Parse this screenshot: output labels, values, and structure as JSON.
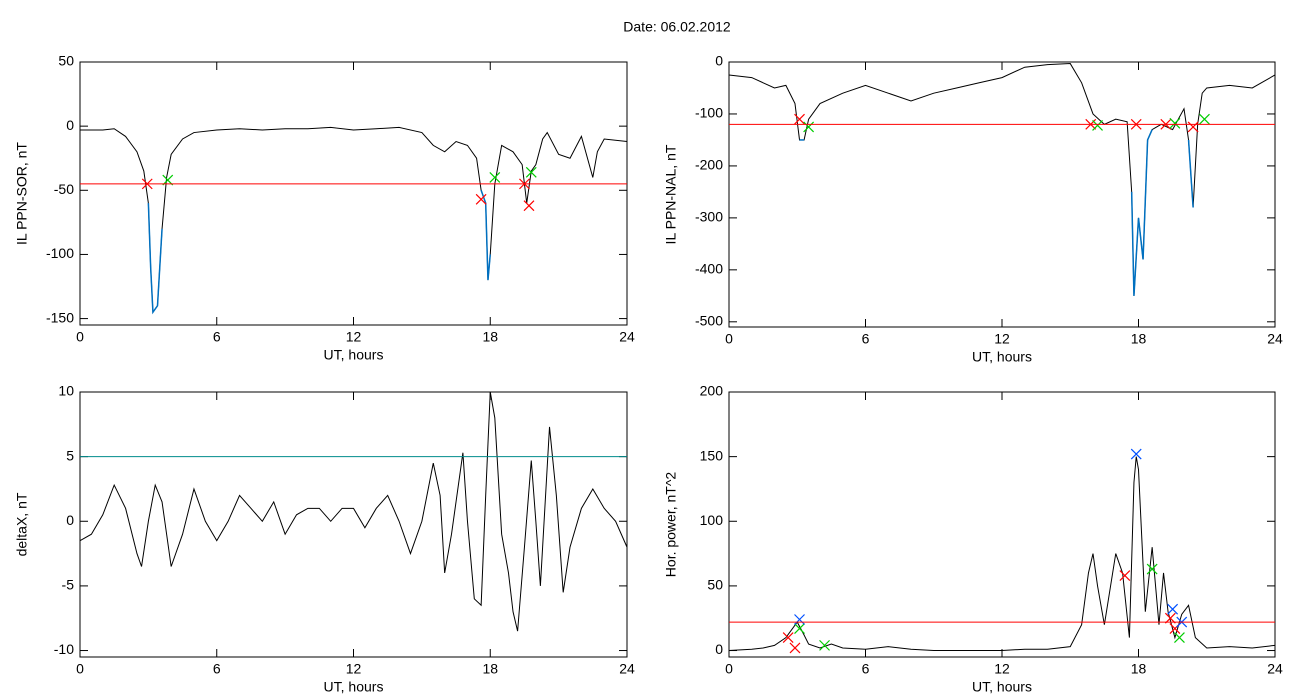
{
  "title": "Date:  06.02.2012",
  "chart_data": [
    {
      "type": "line",
      "ylabel": "IL PPN-SOR, nT",
      "xlabel": "UT, hours",
      "xlim": [
        0,
        24
      ],
      "xticks": [
        0,
        6,
        12,
        18,
        24
      ],
      "ylim": [
        -155,
        50
      ],
      "yticks": [
        -150,
        -100,
        -50,
        0,
        50
      ],
      "threshold": {
        "value": -45,
        "color": "#ff0000"
      },
      "series": [
        {
          "color": "#000000",
          "below_color": "#0070c0",
          "x": [
            0,
            1,
            1.5,
            2,
            2.5,
            2.8,
            3.0,
            3.1,
            3.2,
            3.4,
            3.6,
            3.8,
            4.0,
            4.5,
            5,
            6,
            7,
            8,
            9,
            10,
            11,
            12,
            13,
            14,
            15,
            15.5,
            16,
            16.5,
            17,
            17.4,
            17.6,
            17.8,
            17.9,
            18.0,
            18.2,
            18.5,
            19,
            19.4,
            19.6,
            19.8,
            20,
            20.3,
            20.5,
            21,
            21.5,
            22,
            22.5,
            22.7,
            23,
            24
          ],
          "values": [
            -3,
            -3,
            -2,
            -8,
            -20,
            -35,
            -60,
            -110,
            -145,
            -140,
            -80,
            -40,
            -22,
            -10,
            -5,
            -3,
            -2,
            -3,
            -2,
            -2,
            -1,
            -3,
            -2,
            -1,
            -5,
            -15,
            -20,
            -12,
            -15,
            -25,
            -50,
            -60,
            -120,
            -100,
            -45,
            -15,
            -20,
            -30,
            -60,
            -35,
            -30,
            -10,
            -5,
            -22,
            -25,
            -8,
            -40,
            -20,
            -10,
            -12
          ]
        },
        {
          "marker": "x",
          "color": "#ff0000",
          "x": [
            2.95,
            17.6,
            19.5,
            19.7
          ],
          "values": [
            -45,
            -57,
            -45,
            -62
          ]
        },
        {
          "marker": "x",
          "color": "#00cc00",
          "x": [
            3.85,
            18.2,
            19.8
          ],
          "values": [
            -42,
            -40,
            -36
          ]
        }
      ]
    },
    {
      "type": "line",
      "ylabel": "IL PPN-NAL, nT",
      "xlabel": "UT, hours",
      "xlim": [
        0,
        24
      ],
      "xticks": [
        0,
        6,
        12,
        18,
        24
      ],
      "ylim": [
        -510,
        0
      ],
      "yticks": [
        -500,
        -400,
        -300,
        -200,
        -100,
        0
      ],
      "threshold": {
        "value": -120,
        "color": "#ff0000"
      },
      "series": [
        {
          "color": "#000000",
          "below_color": "#0070c0",
          "x": [
            0,
            1,
            1.5,
            2,
            2.5,
            2.9,
            3.1,
            3.3,
            3.5,
            4,
            5,
            6,
            7,
            8,
            9,
            10,
            11,
            12,
            13,
            14,
            15,
            15.5,
            16,
            16.5,
            17,
            17.5,
            17.7,
            17.8,
            18.0,
            18.2,
            18.4,
            18.6,
            19,
            19.5,
            20,
            20.2,
            20.4,
            20.6,
            20.8,
            21,
            22,
            23,
            24
          ],
          "values": [
            -25,
            -30,
            -40,
            -50,
            -45,
            -80,
            -150,
            -150,
            -110,
            -80,
            -60,
            -45,
            -60,
            -75,
            -60,
            -50,
            -40,
            -30,
            -10,
            -5,
            -3,
            -40,
            -100,
            -120,
            -110,
            -115,
            -250,
            -450,
            -300,
            -380,
            -150,
            -130,
            -120,
            -130,
            -90,
            -150,
            -280,
            -120,
            -60,
            -50,
            -45,
            -50,
            -25
          ]
        },
        {
          "marker": "x",
          "color": "#ff0000",
          "x": [
            3.1,
            15.9,
            17.9,
            19.2,
            20.4
          ],
          "values": [
            -110,
            -120,
            -120,
            -120,
            -125
          ]
        },
        {
          "marker": "x",
          "color": "#00cc00",
          "x": [
            3.5,
            16.2,
            19.6,
            20.9
          ],
          "values": [
            -125,
            -122,
            -118,
            -110
          ]
        }
      ]
    },
    {
      "type": "line",
      "ylabel": "deltaX, nT",
      "xlabel": "UT, hours",
      "xlim": [
        0,
        24
      ],
      "xticks": [
        0,
        6,
        12,
        18,
        24
      ],
      "ylim": [
        -10.5,
        10
      ],
      "yticks": [
        -10,
        -5,
        0,
        5,
        10
      ],
      "threshold": {
        "value": 5,
        "color": "#008b8b"
      },
      "series": [
        {
          "color": "#000000",
          "x": [
            0,
            0.5,
            1,
            1.5,
            2,
            2.5,
            2.7,
            3,
            3.3,
            3.6,
            3.8,
            4,
            4.5,
            5,
            5.5,
            6,
            6.5,
            7,
            7.5,
            8,
            8.5,
            9,
            9.5,
            10,
            10.5,
            11,
            11.5,
            12,
            12.5,
            13,
            13.5,
            14,
            14.5,
            15,
            15.5,
            15.8,
            16,
            16.3,
            16.8,
            17,
            17.3,
            17.6,
            17.8,
            18,
            18.2,
            18.5,
            18.8,
            19,
            19.2,
            19.5,
            19.8,
            20,
            20.2,
            20.6,
            20.9,
            21.2,
            21.5,
            22,
            22.5,
            23,
            23.5,
            24
          ],
          "values": [
            -1.5,
            -1,
            0.5,
            2.8,
            1,
            -2.5,
            -3.5,
            0,
            2.8,
            1.5,
            -1,
            -3.5,
            -1,
            2.5,
            0,
            -1.5,
            0,
            2,
            1,
            0,
            1.5,
            -1,
            0.5,
            1,
            1,
            0,
            1,
            1,
            -0.5,
            1,
            2,
            0,
            -2.5,
            0,
            4.5,
            2,
            -4,
            -1,
            5.3,
            0,
            -6,
            -6.5,
            2,
            10,
            8,
            -1,
            -4,
            -7,
            -8.5,
            -2,
            4.7,
            0,
            -5,
            7.3,
            2,
            -5.5,
            -2,
            1,
            2.5,
            1,
            0,
            -2
          ]
        }
      ]
    },
    {
      "type": "line",
      "ylabel": "Hor. power, nT^2",
      "xlabel": "UT, hours",
      "xlim": [
        0,
        24
      ],
      "xticks": [
        0,
        6,
        12,
        18,
        24
      ],
      "ylim": [
        -5,
        200
      ],
      "yticks": [
        0,
        50,
        100,
        150,
        200
      ],
      "threshold": {
        "value": 22,
        "color": "#ff0000"
      },
      "series": [
        {
          "color": "#000000",
          "x": [
            0,
            1,
            1.5,
            2,
            2.5,
            3,
            3.3,
            3.5,
            4,
            4.5,
            5,
            6,
            7,
            8,
            9,
            10,
            11,
            12,
            13,
            14,
            15,
            15.5,
            15.8,
            16,
            16.2,
            16.5,
            17,
            17.3,
            17.6,
            17.8,
            17.9,
            18,
            18.3,
            18.6,
            18.9,
            19.1,
            19.3,
            19.6,
            19.9,
            20.2,
            20.5,
            21,
            22,
            23,
            24
          ],
          "values": [
            0,
            1,
            2,
            4,
            10,
            22,
            12,
            5,
            2,
            5,
            2,
            1,
            3,
            1,
            0,
            0,
            0,
            0,
            1,
            1,
            3,
            20,
            60,
            75,
            50,
            20,
            75,
            60,
            10,
            130,
            150,
            140,
            30,
            80,
            20,
            60,
            30,
            10,
            28,
            35,
            10,
            2,
            3,
            2,
            4
          ]
        },
        {
          "marker": "x",
          "color": "#ff0000",
          "x": [
            2.6,
            2.9,
            17.4,
            19.4,
            19.6
          ],
          "values": [
            10,
            2,
            58,
            25,
            17
          ]
        },
        {
          "marker": "x",
          "color": "#00cc00",
          "x": [
            3.1,
            4.2,
            18.6,
            19.8
          ],
          "values": [
            17,
            4,
            63,
            10
          ]
        },
        {
          "marker": "x",
          "color": "#0050ff",
          "x": [
            3.1,
            17.9,
            19.5,
            19.9
          ],
          "values": [
            24,
            152,
            32,
            22
          ]
        }
      ]
    }
  ]
}
